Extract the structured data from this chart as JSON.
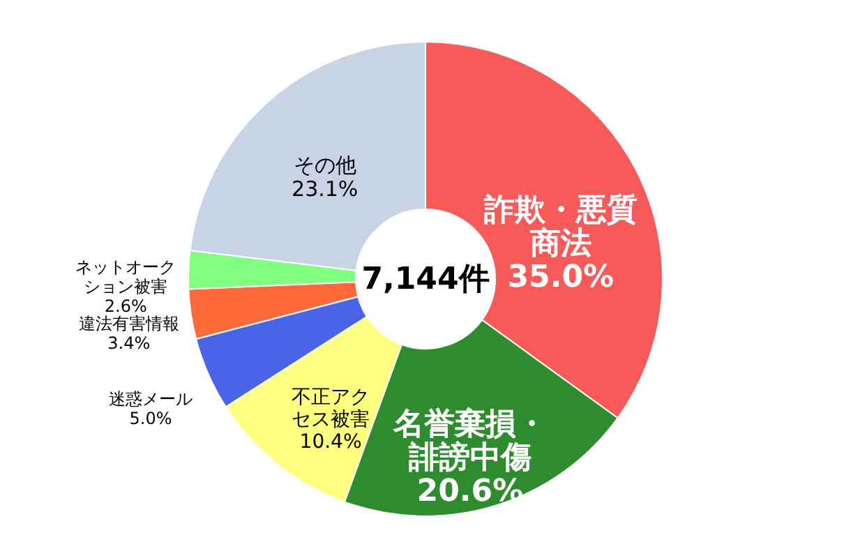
{
  "chart_data": {
    "type": "donut",
    "categories": [
      "詐欺・悪質商法",
      "名誉棄損・誹謗中傷",
      "不正アクセス被害",
      "迷惑メール",
      "違法有害情報",
      "ネットオークション被害",
      "その他"
    ],
    "values": [
      35.0,
      20.6,
      10.4,
      5.0,
      3.4,
      2.6,
      23.1
    ],
    "colors": [
      "#f85a5a",
      "#2e8b2e",
      "#ffff80",
      "#4a64e8",
      "#ff6a3a",
      "#80ff80",
      "#c8d4e6"
    ],
    "value_labels": [
      "35.0%",
      "20.6%",
      "10.4%",
      "5.0%",
      "3.4%",
      "2.6%",
      "23.1%"
    ],
    "annotations": [
      "7,144件"
    ]
  }
}
